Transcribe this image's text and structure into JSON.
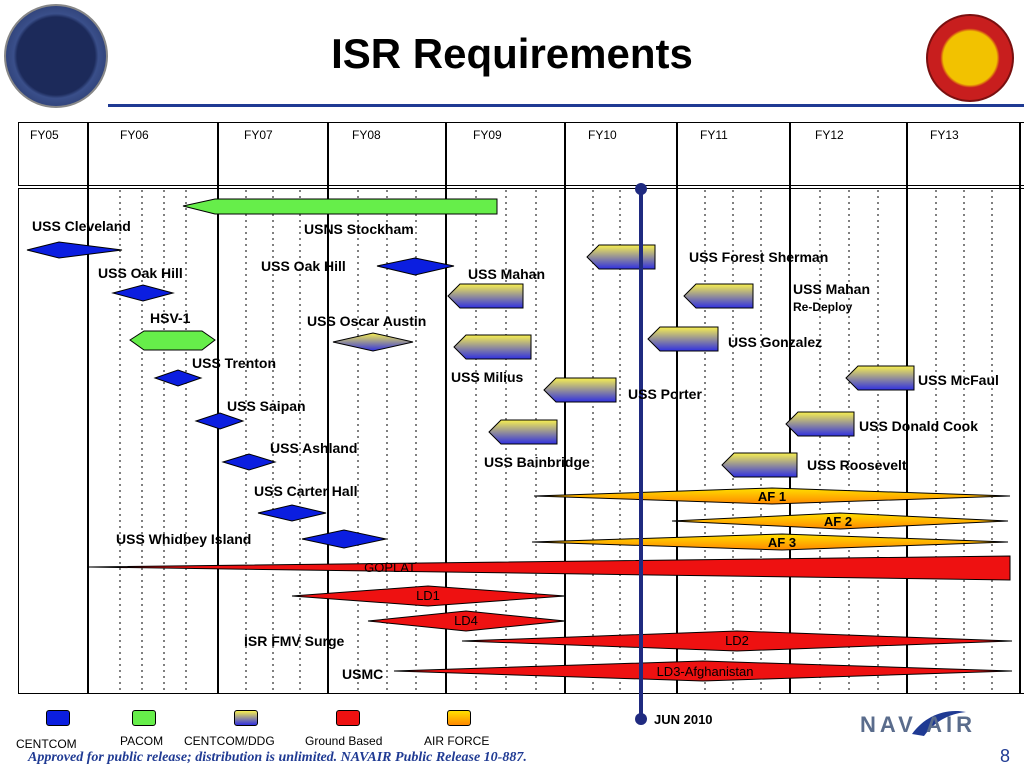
{
  "title": "ISR Requirements",
  "colors": {
    "centcom": "#0b1ee0",
    "pacom": "#66ee4a",
    "ground": "#ee1111",
    "airforce": "#ffcc00",
    "timeline": "#1f2a80",
    "rule": "#1f3a93"
  },
  "fiscal_years": [
    "FY05",
    "FY06",
    "FY07",
    "FY08",
    "FY09",
    "FY10",
    "FY11",
    "FY12",
    "FY13"
  ],
  "labels": {
    "uss_cleveland": "USS Cleveland",
    "usns_stockham": "USNS Stockham",
    "uss_oak_hill_1": "USS Oak Hill",
    "uss_oak_hill_2": "USS Oak Hill",
    "uss_mahan": "USS Mahan",
    "uss_forest_sherman": "USS Forest Sherman",
    "uss_mahan_redeploy": "USS Mahan",
    "re_deploy": "Re-Deploy",
    "hsv1": "HSV-1",
    "uss_oscar_austin": "USS Oscar Austin",
    "uss_gonzalez": "USS Gonzalez",
    "uss_trenton": "USS Trenton",
    "uss_milius": "USS Milius",
    "uss_mcfaul": "USS McFaul",
    "uss_porter": "USS Porter",
    "uss_saipan": "USS Saipan",
    "uss_donald_cook": "USS Donald Cook",
    "uss_ashland": "USS  Ashland",
    "uss_bainbridge": "USS Bainbridge",
    "uss_roosevelt": "USS Roosevelt",
    "uss_carter_hall": "USS Carter Hall",
    "uss_whidbey_island": "USS Whidbey Island",
    "isr_fmv_surge": "ISR FMV Surge",
    "usmc": "USMC"
  },
  "bars": {
    "af1": "AF 1",
    "af2": "AF 2",
    "af3": "AF 3",
    "goplat": "GOPLAT",
    "ld1": "LD1",
    "ld4": "LD4",
    "ld2": "LD2",
    "ld3": "LD3-Afghanistan"
  },
  "timeline_marker": "JUN 2010",
  "legend": [
    {
      "label": "CENTCOM"
    },
    {
      "label": "PACOM"
    },
    {
      "label": "CENTCOM/DDG"
    },
    {
      "label": "Ground Based"
    },
    {
      "label": "AIR FORCE"
    }
  ],
  "footer": "Approved for public release;  distribution is unlimited.  NAVAIR Public Release 10-887.",
  "page_number": "8",
  "navair_logo": "NAV AIR"
}
